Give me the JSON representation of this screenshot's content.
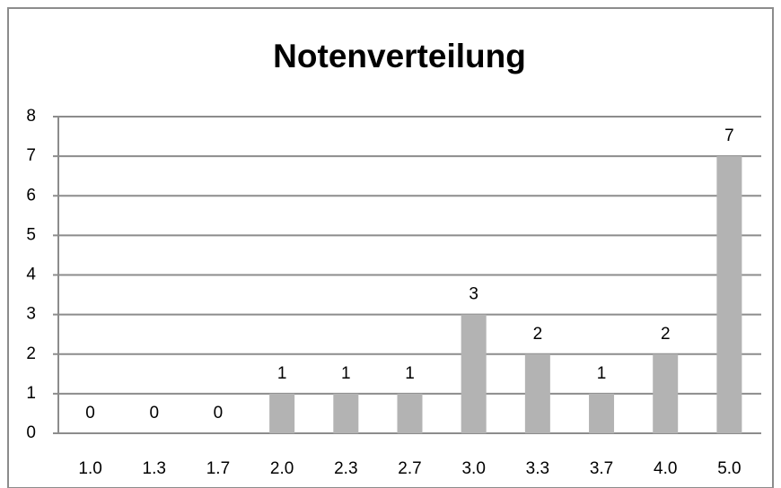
{
  "chart_data": {
    "type": "bar",
    "title": "Notenverteilung",
    "categories": [
      "1.0",
      "1.3",
      "1.7",
      "2.0",
      "2.3",
      "2.7",
      "3.0",
      "3.3",
      "3.7",
      "4.0",
      "5.0"
    ],
    "values": [
      0,
      0,
      0,
      1,
      1,
      1,
      3,
      2,
      1,
      2,
      7
    ],
    "color": "#b3b3b3",
    "ylim": [
      0,
      8
    ],
    "yticks": [
      0,
      1,
      2,
      3,
      4,
      5,
      6,
      7,
      8
    ],
    "grid": true
  }
}
